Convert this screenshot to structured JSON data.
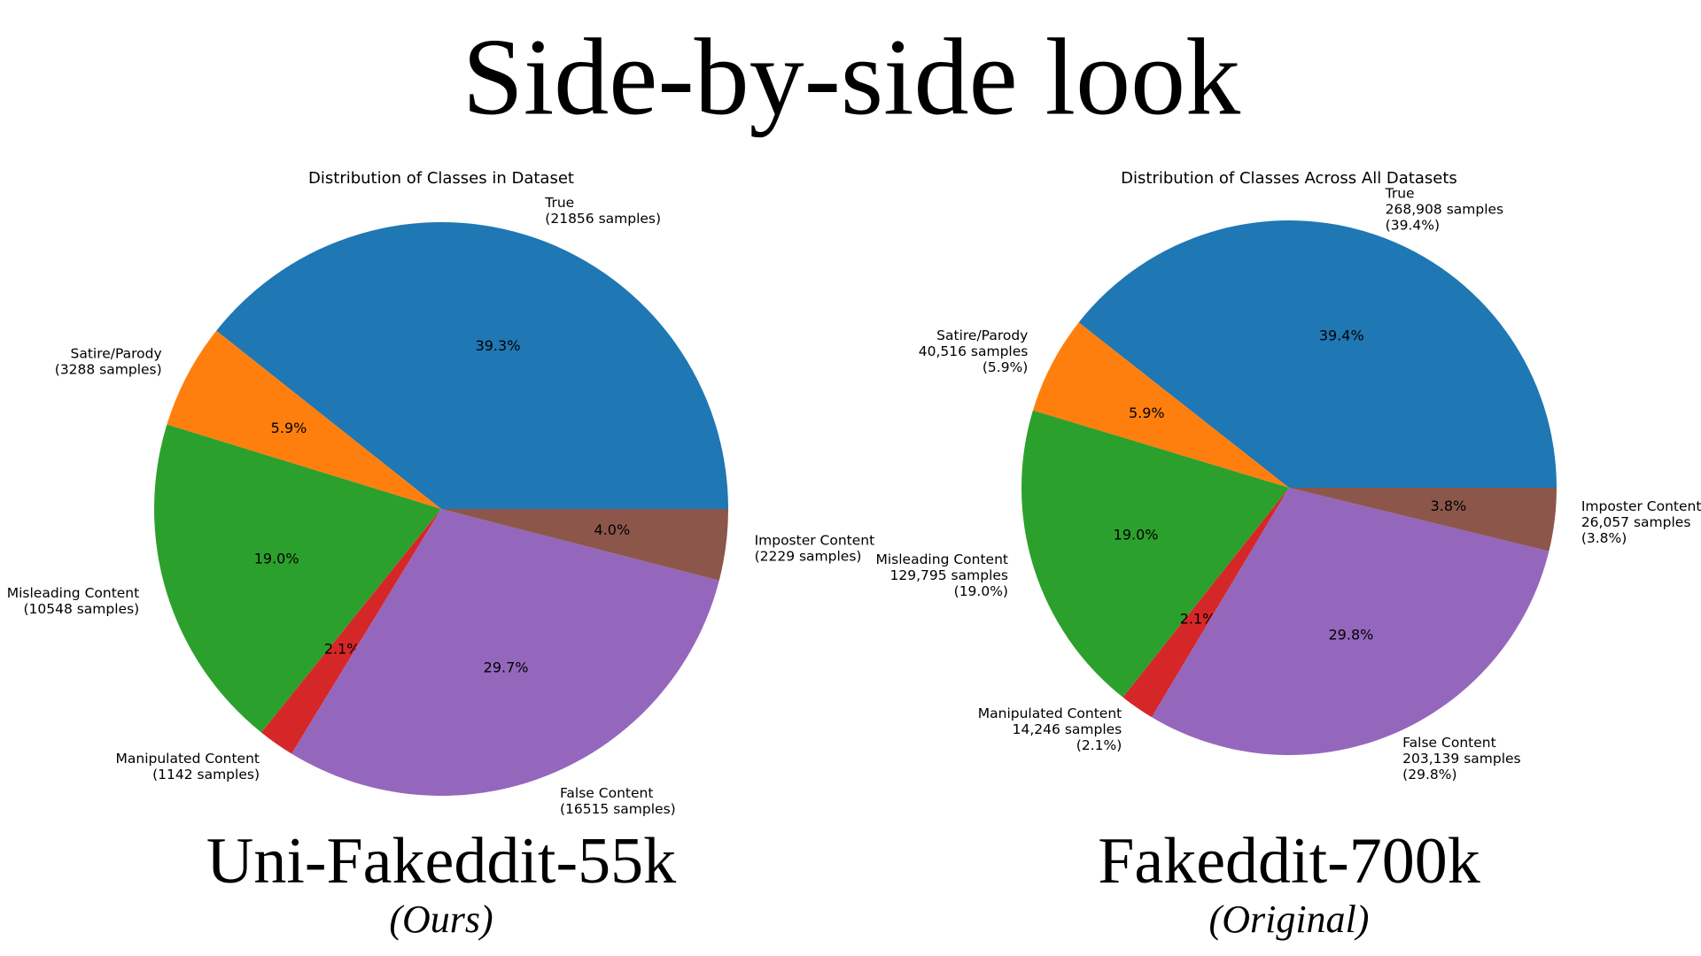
{
  "title": "Side-by-side look",
  "chart_data": [
    {
      "type": "pie",
      "title": "Distribution of Classes in Dataset",
      "categories": [
        "True",
        "Satire/Parody",
        "Misleading Content",
        "Manipulated Content",
        "False Content",
        "Imposter Content"
      ],
      "values": [
        21856,
        3288,
        10548,
        1142,
        16515,
        2229
      ],
      "value_labels": [
        "(21856 samples)",
        "(3288 samples)",
        "(10548 samples)",
        "(1142 samples)",
        "(16515 samples)",
        "(2229 samples)"
      ],
      "percent_labels": [
        "39.3%",
        "5.9%",
        "19.0%",
        "2.1%",
        "29.7%",
        "4.0%"
      ],
      "colors": [
        "#1f77b4",
        "#ff7f0e",
        "#2ca02c",
        "#d62728",
        "#9467bd",
        "#8c564b"
      ],
      "caption": "Uni-Fakeddit-55k",
      "subcaption": "(Ours)"
    },
    {
      "type": "pie",
      "title": "Distribution of Classes Across All Datasets",
      "categories": [
        "True",
        "Satire/Parody",
        "Misleading Content",
        "Manipulated Content",
        "False Content",
        "Imposter Content"
      ],
      "values": [
        268908,
        40516,
        129795,
        14246,
        203139,
        26057
      ],
      "value_labels": [
        "268,908 samples",
        "40,516 samples",
        "129,795 samples",
        "14,246 samples",
        "203,139 samples",
        "26,057 samples"
      ],
      "percent_labels": [
        "39.4%",
        "5.9%",
        "19.0%",
        "2.1%",
        "29.8%",
        "3.8%"
      ],
      "outer_percent_labels": [
        "(39.4%)",
        "(5.9%)",
        "(19.0%)",
        "(2.1%)",
        "(29.8%)",
        "(3.8%)"
      ],
      "colors": [
        "#1f77b4",
        "#ff7f0e",
        "#2ca02c",
        "#d62728",
        "#9467bd",
        "#8c564b"
      ],
      "caption": "Fakeddit-700k",
      "subcaption": "(Original)"
    }
  ]
}
